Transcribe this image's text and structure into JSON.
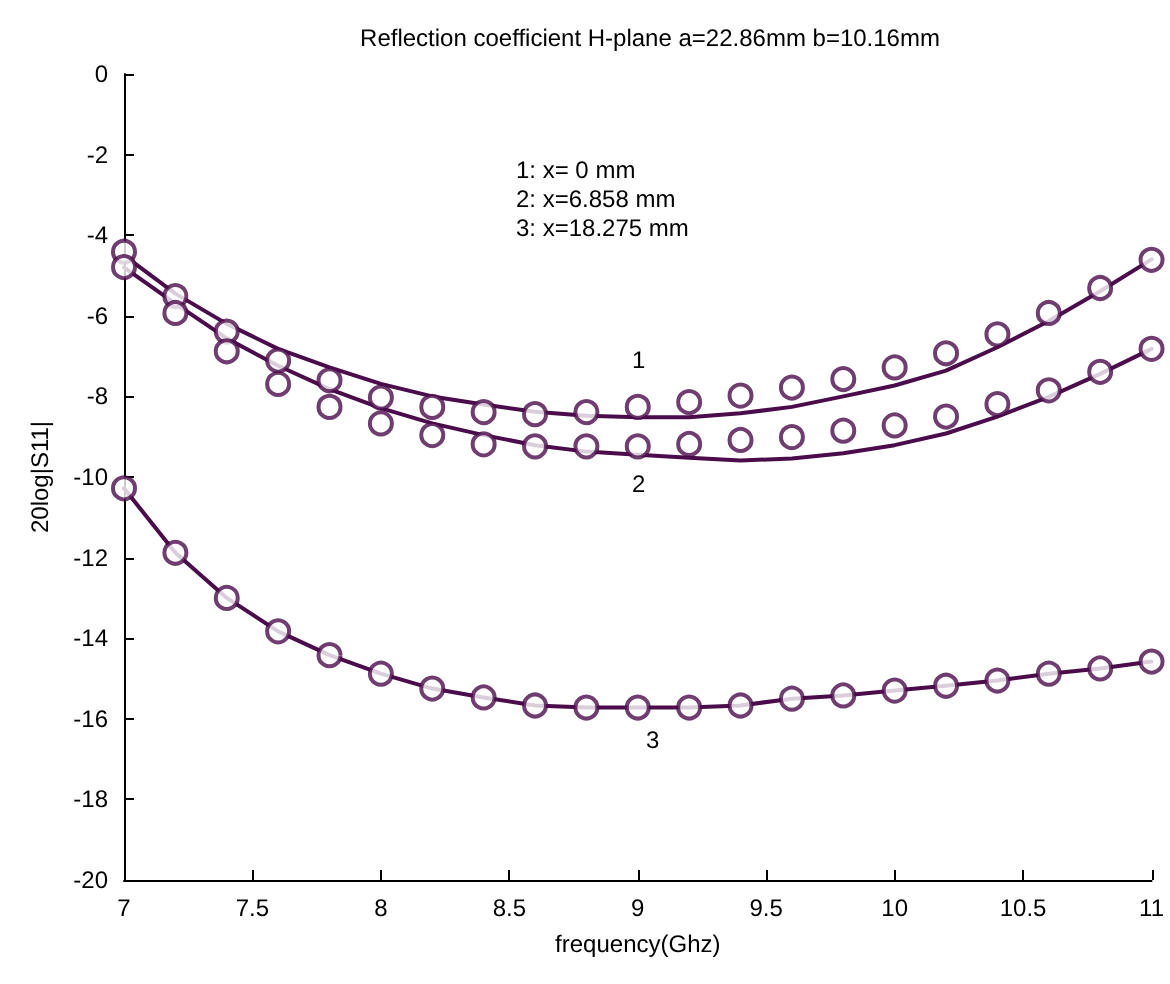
{
  "chart_data": {
    "type": "line",
    "title": "Reflection coefficient H-plane a=22.86mm b=10.16mm",
    "xlabel": "frequency(Ghz)",
    "ylabel": "20log|S11|",
    "x": [
      7,
      7.2,
      7.4,
      7.6,
      7.8,
      8,
      8.2,
      8.4,
      8.6,
      8.8,
      9,
      9.2,
      9.4,
      9.6,
      9.8,
      10,
      10.2,
      10.4,
      10.6,
      10.8,
      11
    ],
    "series": [
      {
        "color": "#4b0c4b",
        "marker": "none",
        "values": [
          -4.5,
          -5.45,
          -6.2,
          -6.82,
          -7.28,
          -7.69,
          -8.0,
          -8.2,
          -8.38,
          -8.48,
          -8.52,
          -8.52,
          -8.42,
          -8.26,
          -8.0,
          -7.73,
          -7.36,
          -6.78,
          -6.13,
          -5.39,
          -4.6
        ]
      },
      {
        "color": "#4b0c4b",
        "marker": "none",
        "values": [
          -4.8,
          -5.7,
          -6.56,
          -7.24,
          -7.82,
          -8.29,
          -8.67,
          -8.96,
          -9.21,
          -9.37,
          -9.45,
          -9.52,
          -9.59,
          -9.54,
          -9.41,
          -9.21,
          -8.92,
          -8.5,
          -8.01,
          -7.44,
          -6.82
        ]
      },
      {
        "color": "#4b0c4b",
        "marker": "none",
        "values": [
          -10.28,
          -11.88,
          -13.0,
          -13.83,
          -14.42,
          -14.88,
          -15.25,
          -15.47,
          -15.67,
          -15.72,
          -15.72,
          -15.72,
          -15.67,
          -15.5,
          -15.42,
          -15.3,
          -15.18,
          -15.05,
          -14.88,
          -14.75,
          -14.58
        ]
      },
      {
        "type": "scatter",
        "color": "#4b0c4b",
        "marker": "circle",
        "values": [
          -4.41,
          -5.51,
          -6.39,
          -7.11,
          -7.6,
          -8.03,
          -8.26,
          -8.39,
          -8.44,
          -8.39,
          -8.26,
          -8.14,
          -7.98,
          -7.78,
          -7.57,
          -7.28,
          -6.93,
          -6.46,
          -5.93,
          -5.31,
          -4.61
        ]
      },
      {
        "type": "scatter",
        "color": "#4b0c4b",
        "marker": "circle",
        "values": [
          -4.79,
          -5.93,
          -6.88,
          -7.69,
          -8.26,
          -8.67,
          -8.96,
          -9.19,
          -9.24,
          -9.24,
          -9.24,
          -9.18,
          -9.08,
          -9.01,
          -8.85,
          -8.72,
          -8.5,
          -8.19,
          -7.85,
          -7.39,
          -6.82
        ]
      },
      {
        "type": "scatter",
        "color": "#4b0c4b",
        "marker": "circle",
        "values": [
          -10.28,
          -11.88,
          -13.0,
          -13.83,
          -14.42,
          -14.88,
          -15.25,
          -15.47,
          -15.67,
          -15.72,
          -15.72,
          -15.72,
          -15.67,
          -15.5,
          -15.42,
          -15.3,
          -15.18,
          -15.05,
          -14.88,
          -14.75,
          -14.58
        ]
      }
    ],
    "xlim": [
      7,
      11
    ],
    "xticks": [
      7,
      7.5,
      8,
      8.5,
      9,
      9.5,
      10,
      10.5,
      11
    ],
    "ylim": [
      -20,
      0
    ],
    "yticks": [
      -20,
      -18,
      -16,
      -14,
      -12,
      -10,
      -8,
      -6,
      -4,
      -2,
      0
    ],
    "grid": false,
    "annotations": [
      "1: x= 0 mm",
      "2: x=6.858 mm",
      "3: x=18.275 mm",
      "1",
      "2",
      "3"
    ]
  }
}
